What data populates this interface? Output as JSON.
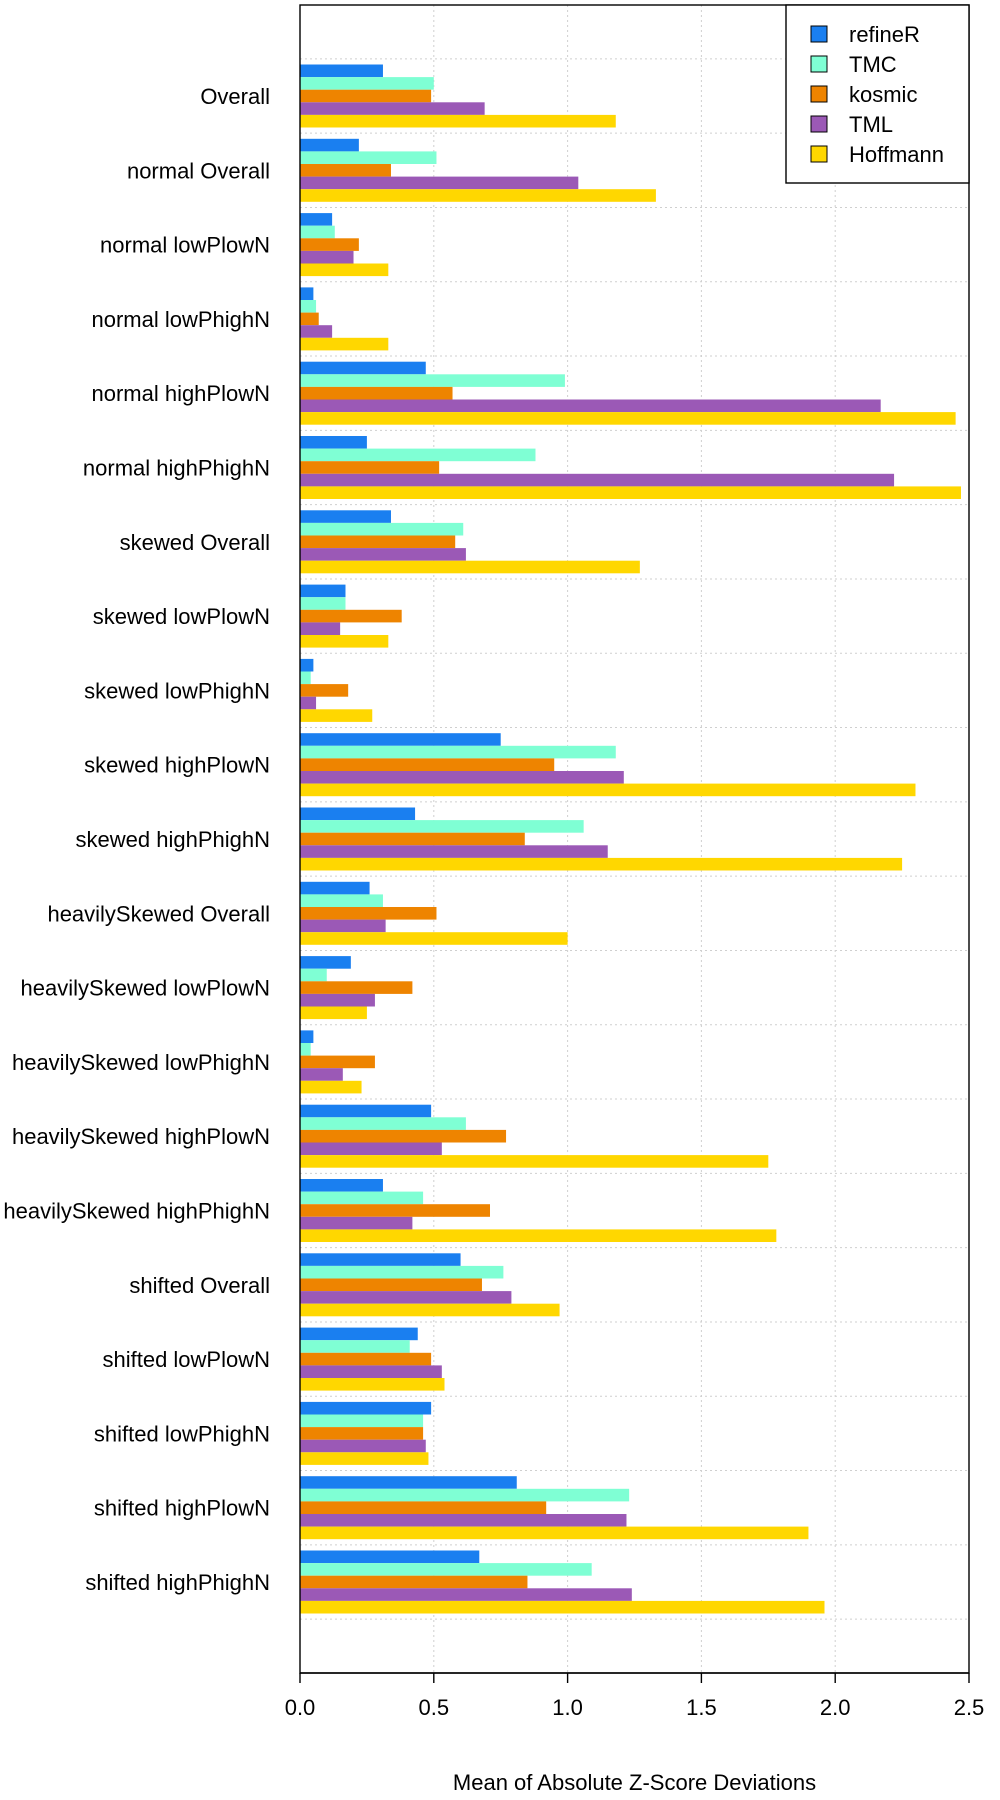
{
  "chart_data": {
    "type": "bar",
    "orientation": "horizontal",
    "title": "",
    "xlabel": "Mean of Absolute Z-Score Deviations",
    "ylabel": "",
    "xlim": [
      0,
      2.5
    ],
    "xticks": [
      "0.0",
      "0.5",
      "1.0",
      "1.5",
      "2.0",
      "2.5"
    ],
    "grid": true,
    "legend_position": "top-right",
    "categories": [
      "Overall",
      "normal Overall",
      "normal lowPlowN",
      "normal lowPhighN",
      "normal highPlowN",
      "normal highPhighN",
      "skewed Overall",
      "skewed lowPlowN",
      "skewed lowPhighN",
      "skewed highPlowN",
      "skewed highPhighN",
      "heavilySkewed Overall",
      "heavilySkewed lowPlowN",
      "heavilySkewed lowPhighN",
      "heavilySkewed highPlowN",
      "heavilySkewed highPhighN",
      "shifted Overall",
      "shifted lowPlowN",
      "shifted lowPhighN",
      "shifted highPlowN",
      "shifted highPhighN"
    ],
    "series": [
      {
        "name": "refineR",
        "color": "#1a7ff0",
        "values": [
          0.31,
          0.22,
          0.12,
          0.05,
          0.47,
          0.25,
          0.34,
          0.17,
          0.05,
          0.75,
          0.43,
          0.26,
          0.19,
          0.05,
          0.49,
          0.31,
          0.6,
          0.44,
          0.49,
          0.81,
          0.67
        ]
      },
      {
        "name": "TMC",
        "color": "#7fffd4",
        "values": [
          0.5,
          0.51,
          0.13,
          0.06,
          0.99,
          0.88,
          0.61,
          0.17,
          0.04,
          1.18,
          1.06,
          0.31,
          0.1,
          0.04,
          0.62,
          0.46,
          0.76,
          0.41,
          0.46,
          1.23,
          1.09
        ]
      },
      {
        "name": "kosmic",
        "color": "#ee8400",
        "values": [
          0.49,
          0.34,
          0.22,
          0.07,
          0.57,
          0.52,
          0.58,
          0.38,
          0.18,
          0.95,
          0.84,
          0.51,
          0.42,
          0.28,
          0.77,
          0.71,
          0.68,
          0.49,
          0.46,
          0.92,
          0.85
        ]
      },
      {
        "name": "TML",
        "color": "#9b59b6",
        "values": [
          0.69,
          1.04,
          0.2,
          0.12,
          2.17,
          2.22,
          0.62,
          0.15,
          0.06,
          1.21,
          1.15,
          0.32,
          0.28,
          0.16,
          0.53,
          0.42,
          0.79,
          0.53,
          0.47,
          1.22,
          1.24
        ]
      },
      {
        "name": "Hoffmann",
        "color": "#ffd700",
        "values": [
          1.18,
          1.33,
          0.33,
          0.33,
          2.45,
          2.47,
          1.27,
          0.33,
          0.27,
          2.3,
          2.25,
          1.0,
          0.25,
          0.23,
          1.75,
          1.78,
          0.97,
          0.54,
          0.48,
          1.9,
          1.96
        ]
      }
    ]
  }
}
